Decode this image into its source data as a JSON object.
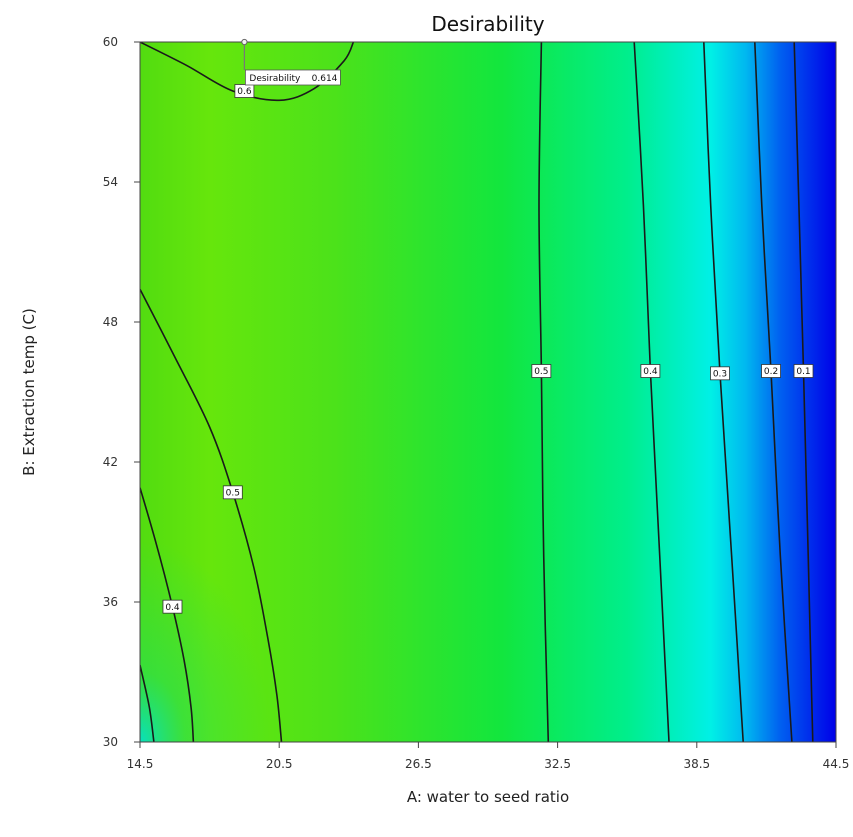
{
  "chart_data": {
    "type": "contour",
    "title": "Desirability",
    "xlabel": "A: water to seed ratio",
    "ylabel": "B: Extraction temp (C)",
    "xlim": [
      14.5,
      44.5
    ],
    "ylim": [
      30,
      60
    ],
    "xticks": [
      "14.5",
      "20.5",
      "26.5",
      "32.5",
      "38.5",
      "44.5"
    ],
    "yticks": [
      "30",
      "36",
      "42",
      "48",
      "54",
      "60"
    ],
    "colors": {
      "high": "#5ee00e",
      "mid": "#00ee55",
      "low_mid": "#00eeee",
      "low": "#0000ee"
    },
    "contours": [
      {
        "level": "0.6",
        "label_at": [
          19.0,
          57.9
        ],
        "points": [
          [
            14.5,
            60
          ],
          [
            16.5,
            59.0
          ],
          [
            18.5,
            57.9
          ],
          [
            20.5,
            57.5
          ],
          [
            22.0,
            58.0
          ],
          [
            23.3,
            59.2
          ],
          [
            23.7,
            60
          ]
        ]
      },
      {
        "level": "0.5",
        "label_at": [
          18.5,
          40.7
        ],
        "points": [
          [
            14.5,
            49.4
          ],
          [
            16.0,
            46.5
          ],
          [
            17.5,
            43.5
          ],
          [
            18.5,
            40.7
          ],
          [
            19.4,
            37.5
          ],
          [
            20.0,
            34.5
          ],
          [
            20.4,
            32.0
          ],
          [
            20.6,
            30
          ]
        ]
      },
      {
        "level": "0.4",
        "label_at": [
          15.9,
          35.8
        ],
        "points": [
          [
            14.5,
            40.9
          ],
          [
            15.2,
            38.5
          ],
          [
            15.9,
            35.8
          ],
          [
            16.4,
            33.5
          ],
          [
            16.7,
            31.5
          ],
          [
            16.8,
            30
          ]
        ]
      },
      {
        "level": "",
        "label_at": null,
        "points": [
          [
            14.5,
            33.3
          ],
          [
            14.9,
            31.5
          ],
          [
            15.1,
            30
          ]
        ]
      },
      {
        "level": "0.5",
        "label_at": [
          31.8,
          45.9
        ],
        "points": [
          [
            31.8,
            60
          ],
          [
            31.7,
            53
          ],
          [
            31.8,
            45.9
          ],
          [
            31.9,
            38
          ],
          [
            32.1,
            30
          ]
        ]
      },
      {
        "level": "0.4",
        "label_at": [
          36.5,
          45.9
        ],
        "points": [
          [
            35.8,
            60
          ],
          [
            36.2,
            53
          ],
          [
            36.5,
            45.9
          ],
          [
            36.9,
            38
          ],
          [
            37.3,
            30
          ]
        ]
      },
      {
        "level": "0.3",
        "label_at": [
          39.5,
          45.8
        ],
        "points": [
          [
            38.8,
            60
          ],
          [
            39.1,
            53
          ],
          [
            39.5,
            45.8
          ],
          [
            40.0,
            38
          ],
          [
            40.5,
            30
          ]
        ]
      },
      {
        "level": "0.2",
        "label_at": [
          41.7,
          45.9
        ],
        "points": [
          [
            41.0,
            60
          ],
          [
            41.3,
            53
          ],
          [
            41.7,
            45.9
          ],
          [
            42.1,
            38
          ],
          [
            42.6,
            30
          ]
        ]
      },
      {
        "level": "0.1",
        "label_at": [
          43.1,
          45.9
        ],
        "points": [
          [
            42.7,
            60
          ],
          [
            42.9,
            53
          ],
          [
            43.1,
            45.9
          ],
          [
            43.3,
            38
          ],
          [
            43.5,
            30
          ]
        ]
      }
    ],
    "flag": {
      "label": "Desirability",
      "value": "0.614",
      "x": 19.0,
      "y": 60
    }
  }
}
